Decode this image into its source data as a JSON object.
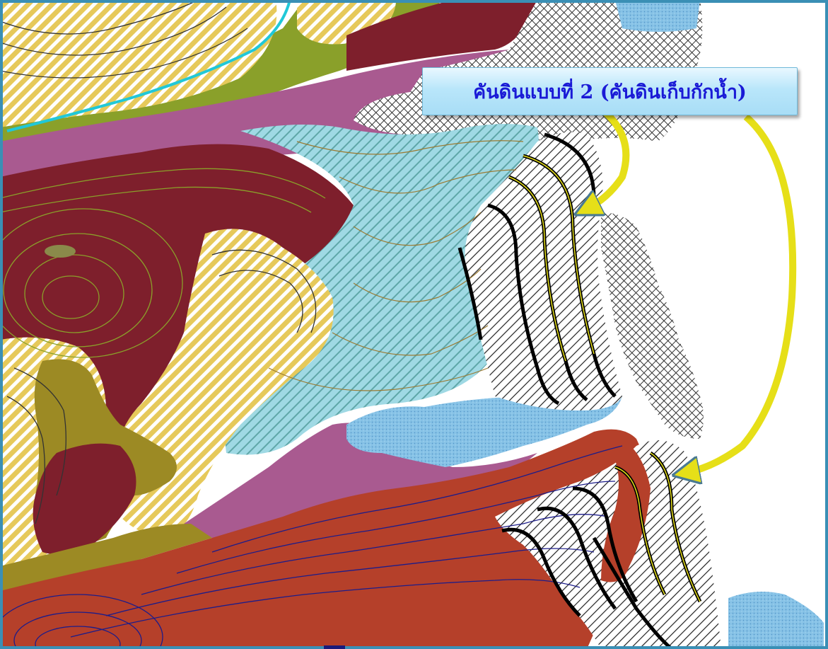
{
  "callout": {
    "label": "คันดินแบบที่ 2 (คันดินเก็บกักน้ำ)"
  },
  "map_theme": {
    "frame_color": "#3a8fb5",
    "units": [
      {
        "name": "dark-red-hill",
        "color": "#7e1f2c"
      },
      {
        "name": "yellow-hatched-terrace",
        "color": "#e6c95a"
      },
      {
        "name": "light-blue-hatched",
        "color": "#9fd9e4"
      },
      {
        "name": "purple-band",
        "color": "#a95a90"
      },
      {
        "name": "olive-green-band",
        "color": "#8aa02a"
      },
      {
        "name": "olive-brown-patch",
        "color": "#9c8a24"
      },
      {
        "name": "rust-red-hill",
        "color": "#b5402a"
      },
      {
        "name": "blue-stipple-water",
        "color": "#86c2e6"
      },
      {
        "name": "white-hatched-terrace",
        "color": "#ffffff"
      },
      {
        "name": "crosshatch-area",
        "color": "#ffffff"
      }
    ],
    "arrow_color": "#e6df18"
  }
}
